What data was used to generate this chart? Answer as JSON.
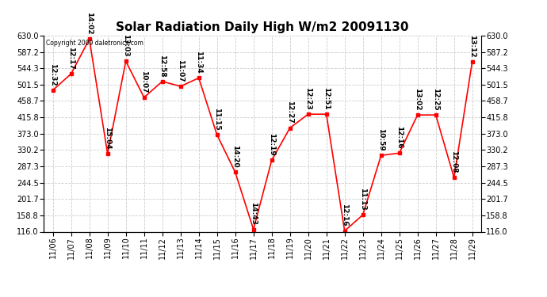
{
  "title": "Solar Radiation Daily High W/m2 20091130",
  "copyright": "Copyright 2009 daletronics.com",
  "dates": [
    "11/06",
    "11/07",
    "11/08",
    "11/09",
    "11/10",
    "11/11",
    "11/12",
    "11/13",
    "11/14",
    "11/15",
    "11/16",
    "11/17",
    "11/18",
    "11/19",
    "11/20",
    "11/21",
    "11/22",
    "11/23",
    "11/24",
    "11/25",
    "11/26",
    "11/27",
    "11/28",
    "11/29"
  ],
  "values": [
    487,
    530,
    621,
    320,
    563,
    468,
    510,
    497,
    519,
    370,
    272,
    122,
    303,
    388,
    424,
    424,
    118,
    160,
    316,
    322,
    422,
    422,
    258,
    562
  ],
  "labels": [
    "12:32",
    "12:17",
    "14:02",
    "15:04",
    "13:03",
    "10:07",
    "12:58",
    "11:07",
    "11:34",
    "11:15",
    "14:20",
    "14:43",
    "12:19",
    "12:27",
    "12:23",
    "12:51",
    "12:16",
    "11:13",
    "10:59",
    "12:16",
    "13:02",
    "12:25",
    "12:08",
    "13:12"
  ],
  "ymin": 116.0,
  "ymax": 630.0,
  "yticks": [
    116.0,
    158.8,
    201.7,
    244.5,
    287.3,
    330.2,
    373.0,
    415.8,
    458.7,
    501.5,
    544.3,
    587.2,
    630.0
  ],
  "line_color": "#ff0000",
  "marker_color": "#ff0000",
  "background_color": "#ffffff",
  "grid_color": "#cccccc",
  "title_fontsize": 11,
  "label_fontsize": 6.5,
  "tick_fontsize": 7,
  "copyright_fontsize": 5.5
}
